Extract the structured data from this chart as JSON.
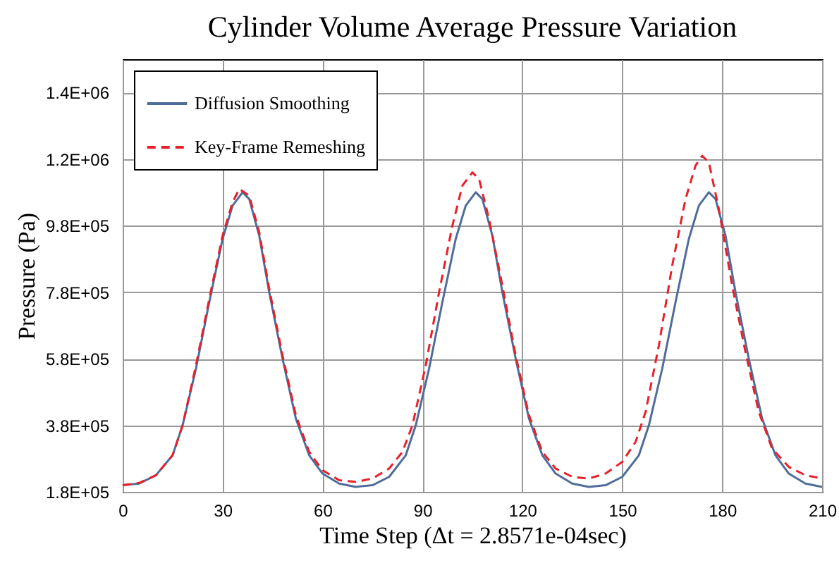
{
  "chart_data": {
    "type": "line",
    "title": "Cylinder Volume Average Pressure Variation",
    "xlabel": "Time Step (Δt = 2.8571e-04sec)",
    "ylabel": "Pressure (Pa)",
    "xlim": [
      0,
      210
    ],
    "xticks": [
      0,
      30,
      60,
      90,
      120,
      150,
      180,
      210
    ],
    "ylim": [
      180000,
      1480000
    ],
    "yticks": [
      {
        "value": 180000,
        "label": "1.8E+05"
      },
      {
        "value": 380000,
        "label": "3.8E+05"
      },
      {
        "value": 580000,
        "label": "5.8E+05"
      },
      {
        "value": 780000,
        "label": "7.8E+05"
      },
      {
        "value": 980000,
        "label": "9.8E+05"
      },
      {
        "value": 1180000,
        "label": "1.2E+06"
      },
      {
        "value": 1380000,
        "label": "1.4E+06"
      }
    ],
    "grid": true,
    "legend": "top left",
    "marker": "none",
    "series": [
      {
        "name": "Diffusion Smoothing",
        "color": "#4f6d9a",
        "line_style": "solid",
        "x": [
          0,
          5,
          10,
          15,
          18,
          22,
          26,
          30,
          33,
          36,
          38,
          41,
          44,
          48,
          52,
          56,
          60,
          65,
          70,
          75,
          80,
          85,
          88,
          92,
          96,
          100,
          103,
          106,
          108,
          111,
          114,
          118,
          122,
          126,
          130,
          135,
          140,
          145,
          150,
          155,
          158,
          162,
          166,
          170,
          173,
          176,
          178,
          181,
          184,
          188,
          192,
          196,
          200,
          205,
          210
        ],
        "values": [
          200000,
          205000,
          230000,
          290000,
          380000,
          550000,
          750000,
          940000,
          1040000,
          1080000,
          1060000,
          950000,
          780000,
          580000,
          400000,
          290000,
          235000,
          205000,
          195000,
          200000,
          225000,
          290000,
          380000,
          550000,
          750000,
          940000,
          1040000,
          1080000,
          1060000,
          950000,
          780000,
          580000,
          400000,
          290000,
          235000,
          205000,
          195000,
          200000,
          225000,
          290000,
          380000,
          550000,
          750000,
          940000,
          1040000,
          1080000,
          1060000,
          950000,
          780000,
          580000,
          400000,
          290000,
          235000,
          205000,
          195000
        ]
      },
      {
        "name": "Key-Frame Remeshing",
        "color": "#e8202a",
        "line_style": "dashed",
        "x": [
          0,
          5,
          10,
          15,
          18,
          22,
          26,
          30,
          33,
          35,
          38,
          41,
          44,
          48,
          52,
          56,
          60,
          65,
          70,
          75,
          80,
          84,
          87,
          91,
          95,
          99,
          102,
          105,
          107,
          110,
          114,
          118,
          122,
          126,
          130,
          135,
          140,
          145,
          150,
          154,
          157,
          161,
          165,
          169,
          172,
          174,
          176,
          179,
          183,
          187,
          191,
          195,
          200,
          205,
          210
        ],
        "values": [
          200000,
          207000,
          230000,
          290000,
          380000,
          560000,
          760000,
          950000,
          1050000,
          1090000,
          1070000,
          960000,
          790000,
          590000,
          410000,
          300000,
          245000,
          215000,
          210000,
          220000,
          250000,
          300000,
          380000,
          560000,
          780000,
          980000,
          1100000,
          1140000,
          1120000,
          1000000,
          800000,
          590000,
          410000,
          300000,
          250000,
          225000,
          220000,
          235000,
          270000,
          330000,
          420000,
          620000,
          860000,
          1060000,
          1160000,
          1190000,
          1170000,
          1030000,
          800000,
          600000,
          420000,
          310000,
          255000,
          230000,
          220000
        ]
      }
    ]
  }
}
